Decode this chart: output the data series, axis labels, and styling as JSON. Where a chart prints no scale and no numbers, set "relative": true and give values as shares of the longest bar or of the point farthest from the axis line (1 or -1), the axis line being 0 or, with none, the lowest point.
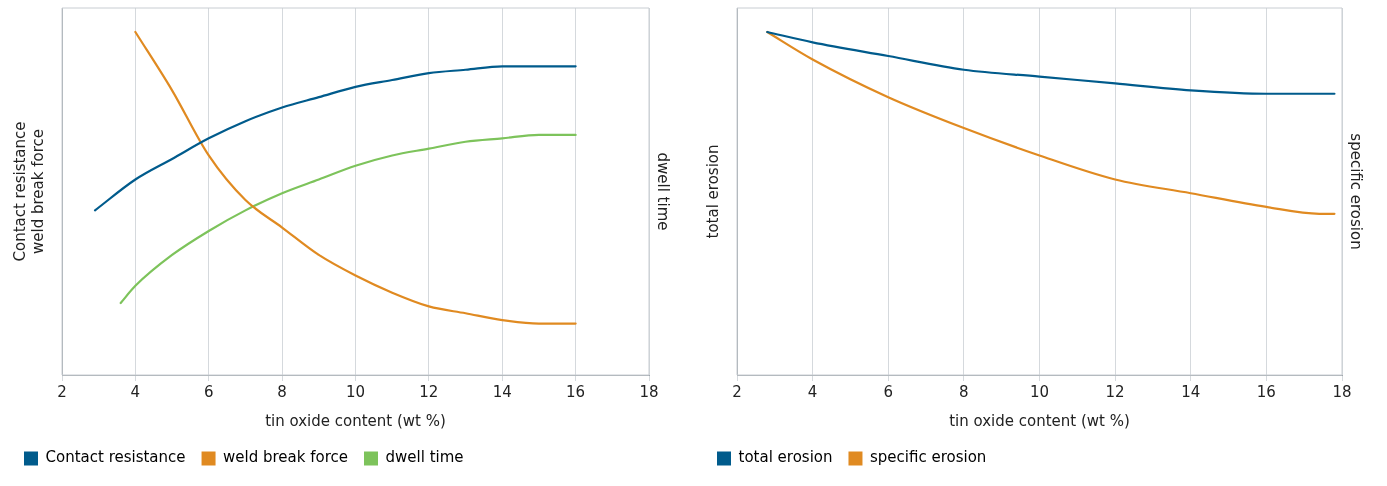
{
  "chart_data": [
    {
      "type": "line",
      "relative": true,
      "xlabel": "tin oxide content (wt %)",
      "ylabel": "Contact resistance\nweld break force",
      "y2label": "dwell time",
      "xlim": [
        2,
        18
      ],
      "xticks": [
        2,
        4,
        6,
        8,
        10,
        12,
        14,
        16,
        18
      ],
      "grid": "x",
      "legend": "bottom",
      "marker": "none",
      "line_style": "solid",
      "series": [
        {
          "name": "Contact resistance",
          "color": "#005b8c",
          "x": [
            2.9,
            4,
            5,
            6,
            7,
            8,
            9,
            10,
            11,
            12,
            13,
            14,
            15,
            16
          ],
          "values": [
            0.48,
            0.57,
            0.63,
            0.69,
            0.74,
            0.78,
            0.81,
            0.84,
            0.86,
            0.88,
            0.89,
            0.9,
            0.9,
            0.9
          ]
        },
        {
          "name": "weld break force",
          "color": "#e08a21",
          "x": [
            4,
            5,
            6,
            7,
            8,
            9,
            10,
            11,
            12,
            13,
            14,
            15,
            15.5,
            16
          ],
          "values": [
            1.0,
            0.83,
            0.64,
            0.51,
            0.43,
            0.35,
            0.29,
            0.24,
            0.2,
            0.18,
            0.16,
            0.15,
            0.15,
            0.15
          ]
        },
        {
          "name": "dwell time",
          "color": "#7dc35b",
          "x": [
            3.6,
            4,
            5,
            6,
            7,
            8,
            9,
            10,
            11,
            12,
            13,
            14,
            15,
            16
          ],
          "values": [
            0.21,
            0.26,
            0.35,
            0.42,
            0.48,
            0.53,
            0.57,
            0.61,
            0.64,
            0.66,
            0.68,
            0.69,
            0.7,
            0.7
          ]
        }
      ]
    },
    {
      "type": "line",
      "relative": true,
      "xlabel": "tin oxide content (wt %)",
      "ylabel": "total erosion",
      "y2label": "specific erosion",
      "xlim": [
        2,
        18
      ],
      "xticks": [
        2,
        4,
        6,
        8,
        10,
        12,
        14,
        16,
        18
      ],
      "grid": "x",
      "legend": "bottom",
      "marker": "none",
      "line_style": "solid",
      "series": [
        {
          "name": "total erosion",
          "color": "#005b8c",
          "x": [
            2.8,
            4,
            6,
            8,
            10,
            12,
            14,
            16,
            17.8
          ],
          "values": [
            1.0,
            0.97,
            0.93,
            0.89,
            0.87,
            0.85,
            0.83,
            0.82,
            0.82
          ]
        },
        {
          "name": "specific erosion",
          "color": "#e08a21",
          "x": [
            2.8,
            4,
            6,
            8,
            10,
            12,
            14,
            16,
            17.4,
            17.8
          ],
          "values": [
            1.0,
            0.92,
            0.81,
            0.72,
            0.64,
            0.57,
            0.53,
            0.49,
            0.47,
            0.47
          ]
        }
      ]
    }
  ]
}
